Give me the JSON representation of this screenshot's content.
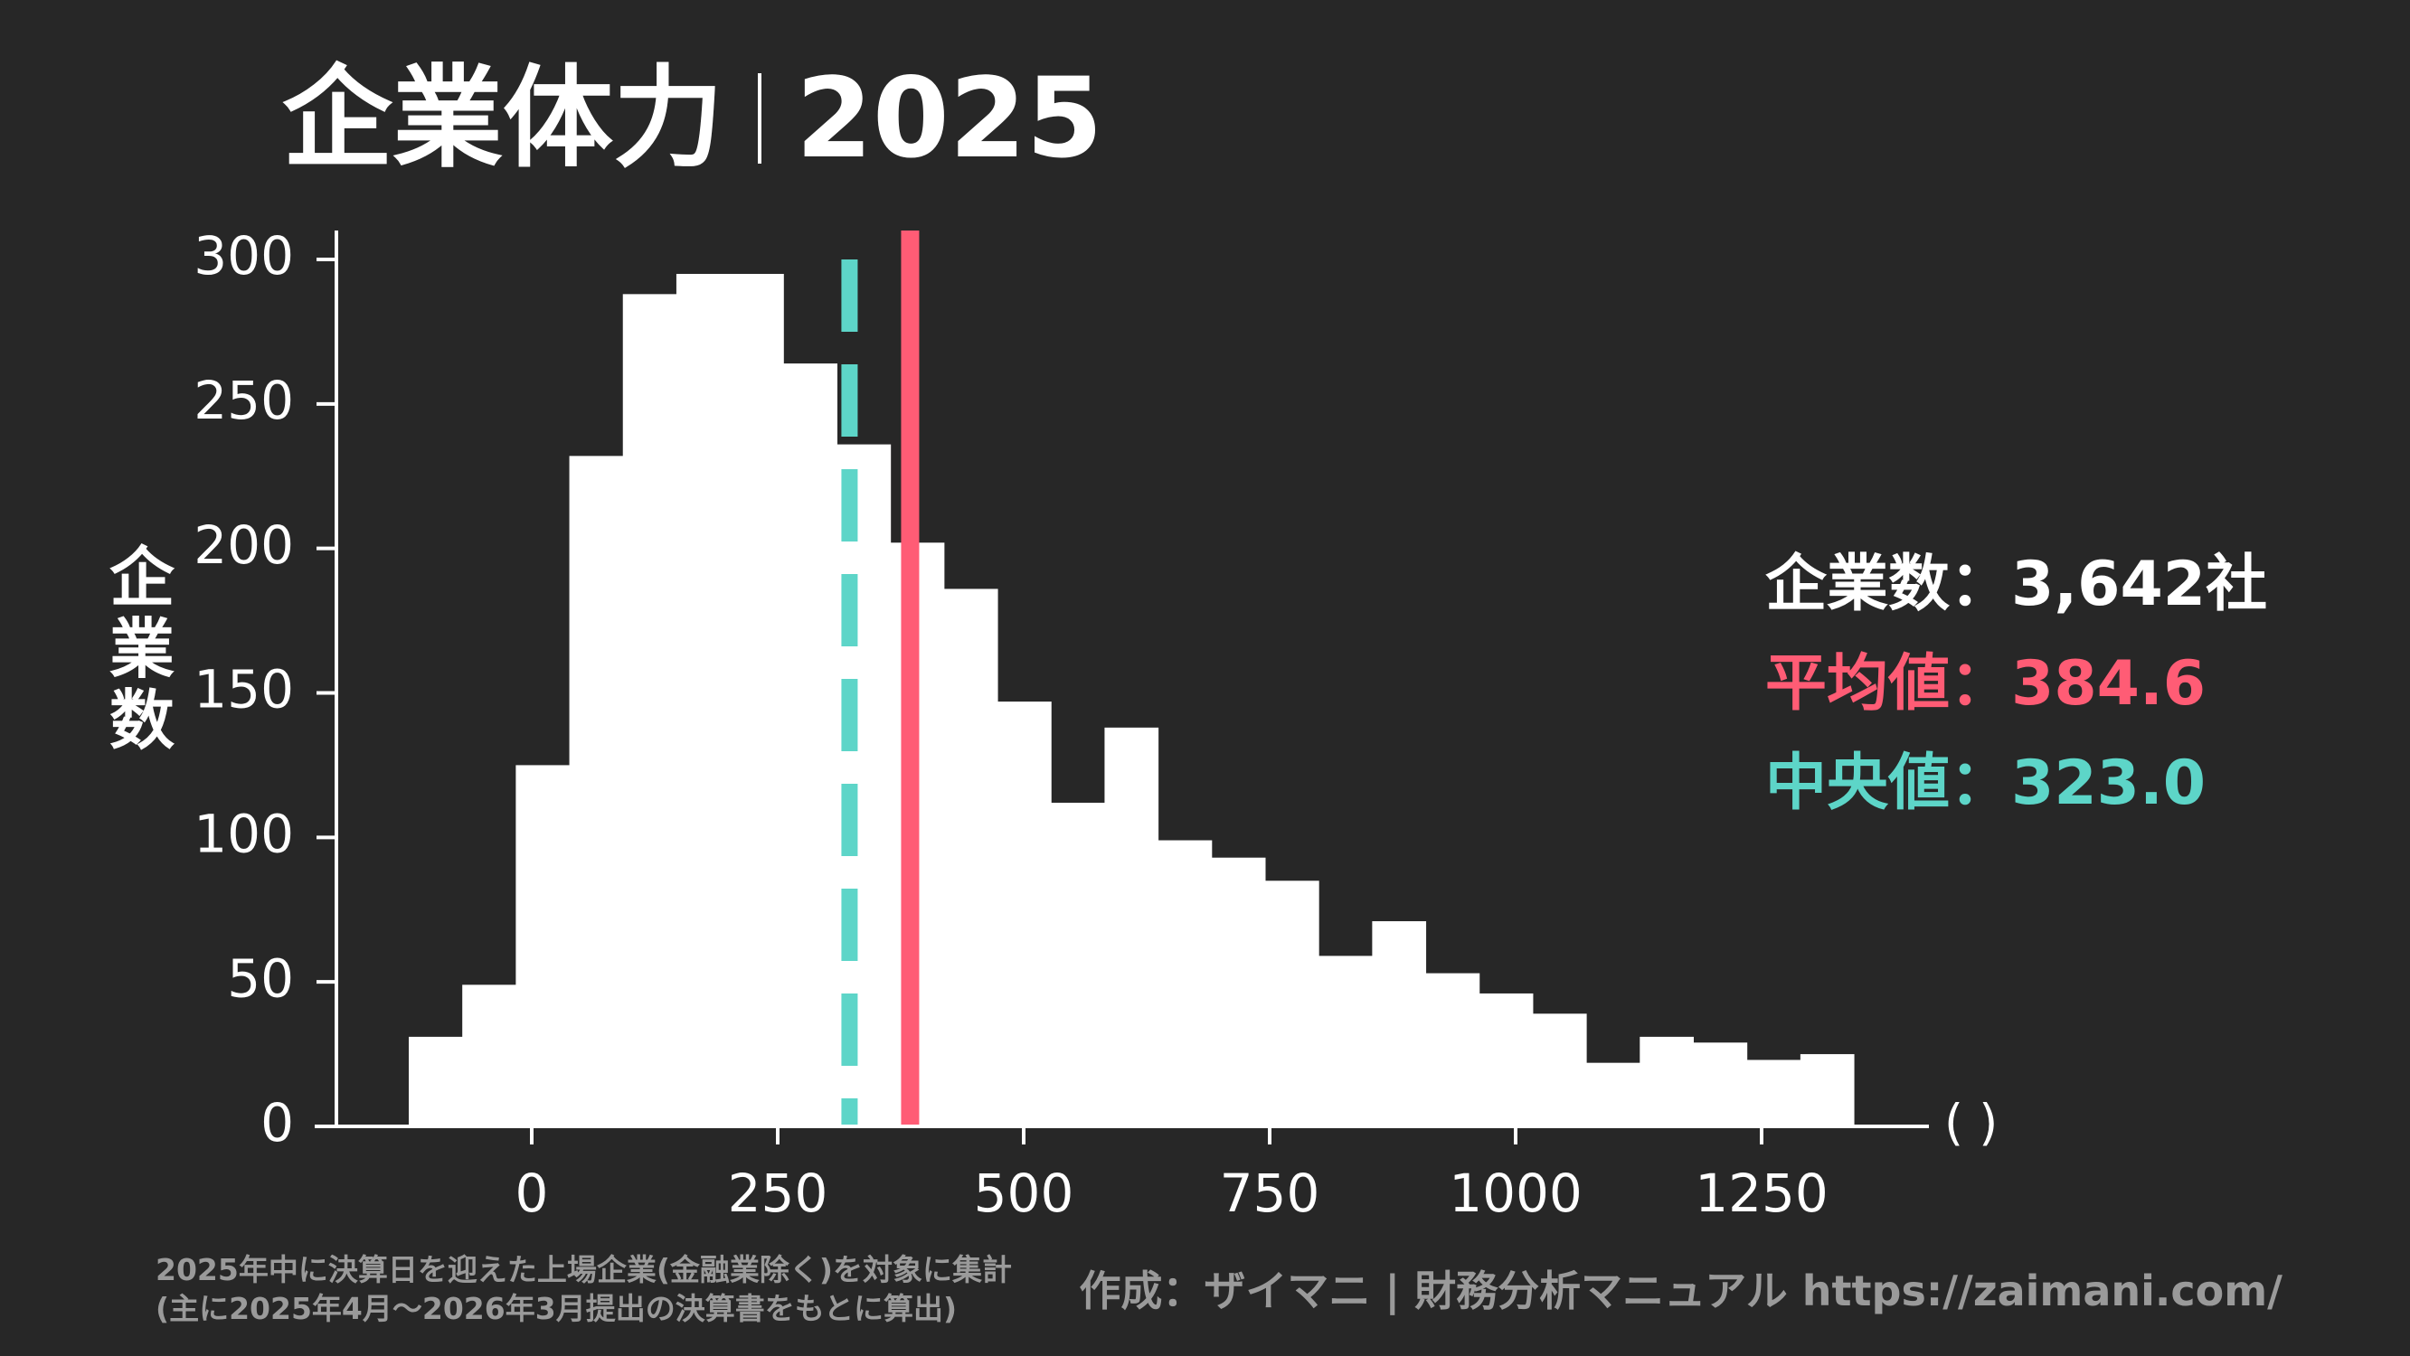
{
  "header": {
    "title_main": "企業体力",
    "title_year": "2025"
  },
  "stats": {
    "count_label": "企業数",
    "count_value": "3,642社",
    "mean_label": "平均値",
    "mean_value": "384.6",
    "median_label": "中央値",
    "median_value": "323.0",
    "separator": "："
  },
  "footer": {
    "note_line1": "2025年中に決算日を迎えた上場企業(金融業除く)を対象に集計",
    "note_line2": "(主に2025年4月～2026年3月提出の決算書をもとに算出)",
    "credit": "作成：ザイマニ | 財務分析マニュアル https://zaimani.com/"
  },
  "colors": {
    "background": "#272727",
    "bars": "#ffffff",
    "mean": "#ff5c75",
    "median": "#5dd5c8",
    "footnote": "#9a9a9a"
  },
  "chart_data": {
    "type": "bar",
    "subtype": "histogram",
    "title": "企業体力｜2025",
    "xlabel": "( )",
    "ylabel": "企業数",
    "xlim": [
      -200,
      1420
    ],
    "ylim": [
      0,
      310
    ],
    "xticks": [
      0,
      250,
      500,
      750,
      1000,
      1250
    ],
    "yticks": [
      0,
      50,
      100,
      150,
      200,
      250,
      300
    ],
    "grid": false,
    "bin_start": -125,
    "bin_width": 54.4,
    "values": [
      31,
      49,
      125,
      232,
      288,
      295,
      295,
      264,
      236,
      202,
      186,
      147,
      112,
      138,
      99,
      93,
      85,
      59,
      71,
      53,
      46,
      39,
      22,
      31,
      29,
      23,
      25
    ],
    "mean": 384.6,
    "median": 323.0
  }
}
